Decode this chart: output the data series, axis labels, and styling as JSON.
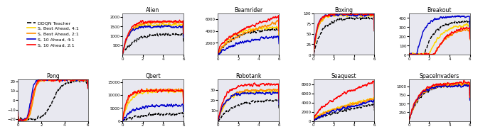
{
  "games_top": [
    "Alien",
    "Beamrider",
    "Boxing",
    "Breakout"
  ],
  "games_bottom": [
    "Pong",
    "Qbert",
    "Robotank",
    "Seaquest",
    "SpaceInvaders"
  ],
  "legend_labels": [
    "DDQN Teacher",
    "S, Best Ahead, 4:1",
    "S, Best Ahead, 2:1",
    "S, 10 Ahead, 4:1",
    "S, 10 Ahead, 2:1"
  ],
  "colors": [
    "black",
    "#FFD700",
    "#FF8C00",
    "#0000CD",
    "#FF0000"
  ],
  "linestyles": [
    "--",
    "-",
    "-",
    "-",
    "-"
  ],
  "linewidths": [
    1.0,
    1.0,
    1.0,
    1.0,
    1.0
  ],
  "bg_color": "#E8E8F0",
  "ylims": {
    "Alien": [
      0,
      2200
    ],
    "Beamrider": [
      0,
      7000
    ],
    "Boxing": [
      0,
      100
    ],
    "Breakout": [
      0,
      450
    ],
    "Pong": [
      -22,
      22
    ],
    "Qbert": [
      0,
      16000
    ],
    "Robotank": [
      0,
      40
    ],
    "Seaquest": [
      0,
      9000
    ],
    "SpaceInvaders": [
      0,
      1200
    ]
  },
  "yticks": {
    "Alien": [
      500,
      1000,
      1500,
      2000
    ],
    "Beamrider": [
      2000,
      4000,
      6000
    ],
    "Boxing": [
      0,
      25,
      50,
      75,
      100
    ],
    "Breakout": [
      0,
      100,
      200,
      300,
      400
    ],
    "Pong": [
      -20,
      -10,
      0,
      10,
      20
    ],
    "Qbert": [
      0,
      5000,
      10000,
      15000
    ],
    "Robotank": [
      10,
      20,
      30
    ],
    "Seaquest": [
      0,
      2000,
      4000,
      6000,
      8000
    ],
    "SpaceInvaders": [
      250,
      500,
      750,
      1000
    ]
  }
}
